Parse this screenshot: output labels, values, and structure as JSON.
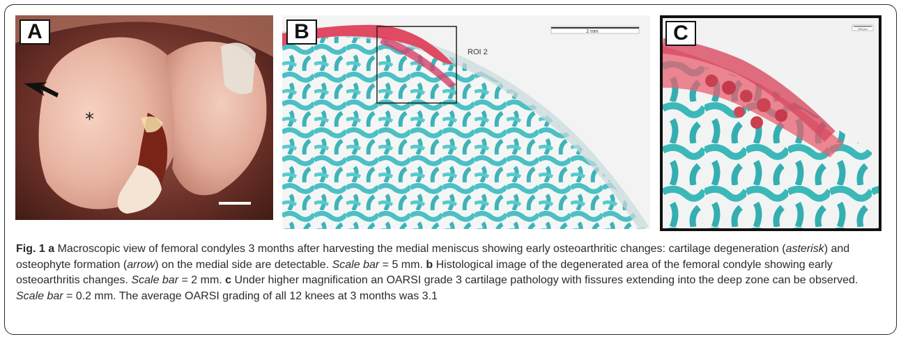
{
  "panels": {
    "a": {
      "label": "A"
    },
    "b": {
      "label": "B",
      "roi_label": "ROI 2",
      "scale_label": "2 mm"
    },
    "c": {
      "label": "C",
      "scale_label": "200 µm"
    }
  },
  "caption": {
    "fig_label": "Fig. 1",
    "a_letter": "a",
    "a_text_1": "Macroscopic view of femoral condyles 3 months after harvesting the medial meniscus showing early osteoarthritic changes: cartilage degeneration (",
    "a_asterisk": "asterisk",
    "a_text_2": ") and osteophyte formation (",
    "a_arrow": "arrow",
    "a_text_3": ") on the medial side are detectable.",
    "a_scale": "Scale bar",
    "a_scale_value": " = 5 mm.",
    "b_letter": "b",
    "b_text": "Histological image of the degenerated area of the femoral condyle showing early osteoarthritis changes.",
    "b_scale": "Scale bar",
    "b_scale_value": " = 2 mm.",
    "c_letter": "c",
    "c_text": "Under higher magnification an OARSI grade 3 cartilage pathology with fissures extending into the deep zone can be observed.",
    "c_scale": "Scale bar",
    "c_scale_value": " = 0.2 mm. The average OARSI grading of all 12 knees at 3 months was 3.1"
  }
}
